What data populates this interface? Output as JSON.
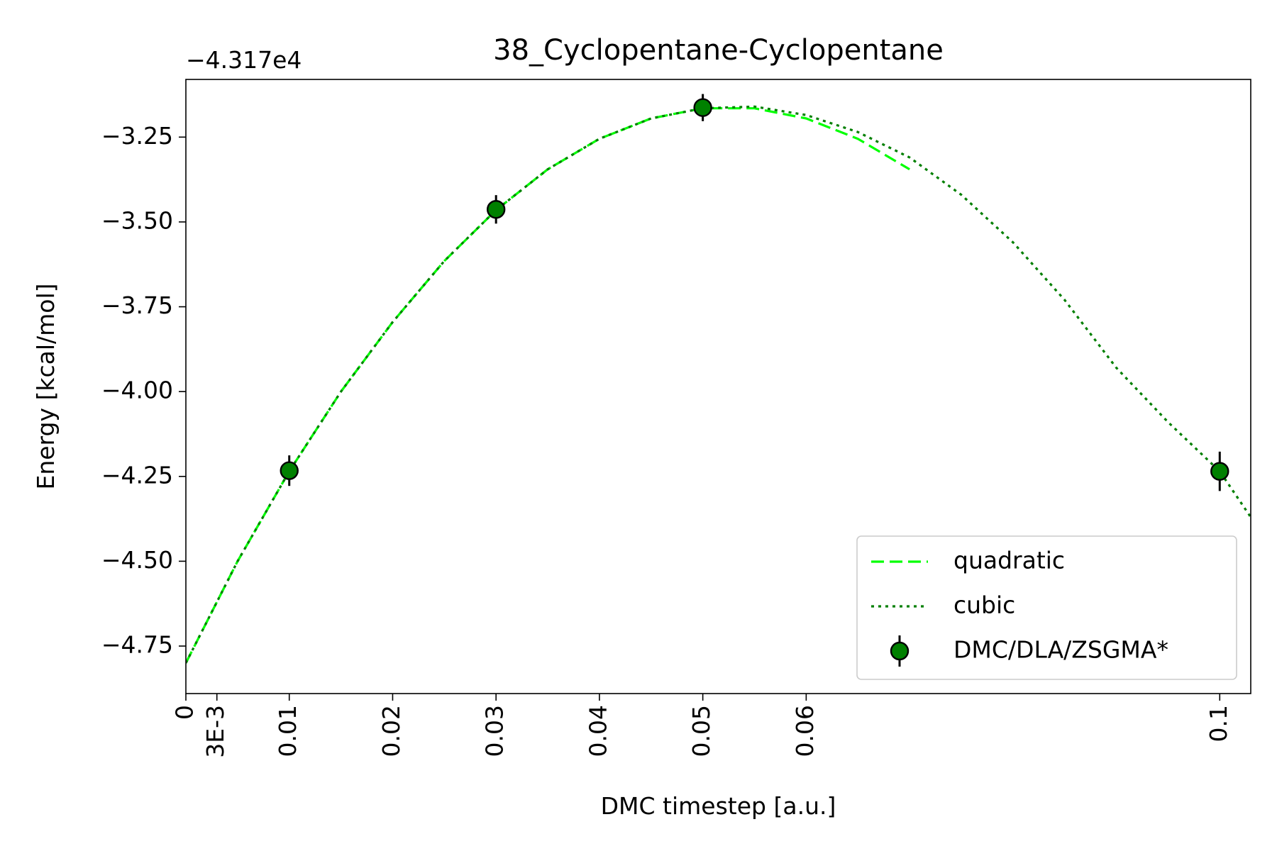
{
  "chart_data": {
    "type": "line",
    "title": "38_Cyclopentane-Cyclopentane",
    "xlabel": "DMC timestep [a.u.]",
    "ylabel": "Energy [kcal/mol]",
    "y_offset_label": "−4.317e4",
    "xlim": [
      0,
      0.103
    ],
    "ylim": [
      -4.89,
      -3.08
    ],
    "grid": false,
    "legend_position": "lower-right",
    "x_ticks": [
      {
        "value": 0,
        "label": "0"
      },
      {
        "value": 0.003,
        "label": "3E-3"
      },
      {
        "value": 0.01,
        "label": "0.01"
      },
      {
        "value": 0.02,
        "label": "0.02"
      },
      {
        "value": 0.03,
        "label": "0.03"
      },
      {
        "value": 0.04,
        "label": "0.04"
      },
      {
        "value": 0.05,
        "label": "0.05"
      },
      {
        "value": 0.06,
        "label": "0.06"
      },
      {
        "value": 0.1,
        "label": "0.1"
      }
    ],
    "y_ticks": [
      {
        "value": -3.25,
        "label": "−3.25"
      },
      {
        "value": -3.5,
        "label": "−3.50"
      },
      {
        "value": -3.75,
        "label": "−3.75"
      },
      {
        "value": -4.0,
        "label": "−4.00"
      },
      {
        "value": -4.25,
        "label": "−4.25"
      },
      {
        "value": -4.5,
        "label": "−4.50"
      },
      {
        "value": -4.75,
        "label": "−4.75"
      }
    ],
    "series": [
      {
        "name": "quadratic",
        "kind": "line",
        "style": "dashed",
        "color": "#00ff00",
        "x": [
          0,
          0.005,
          0.01,
          0.015,
          0.02,
          0.025,
          0.03,
          0.035,
          0.04,
          0.045,
          0.05,
          0.055,
          0.06,
          0.065,
          0.07
        ],
        "y": [
          -4.8,
          -4.5,
          -4.235,
          -4.0,
          -3.795,
          -3.615,
          -3.465,
          -3.345,
          -3.255,
          -3.195,
          -3.165,
          -3.165,
          -3.195,
          -3.255,
          -3.345
        ]
      },
      {
        "name": "cubic",
        "kind": "line",
        "style": "dotted",
        "color": "#007f00",
        "x": [
          0,
          0.005,
          0.01,
          0.015,
          0.02,
          0.025,
          0.03,
          0.035,
          0.04,
          0.045,
          0.05,
          0.055,
          0.06,
          0.065,
          0.07,
          0.075,
          0.08,
          0.085,
          0.09,
          0.095,
          0.1,
          0.103
        ],
        "y": [
          -4.8,
          -4.5,
          -4.235,
          -4.0,
          -3.795,
          -3.615,
          -3.465,
          -3.345,
          -3.255,
          -3.195,
          -3.165,
          -3.16,
          -3.185,
          -3.235,
          -3.31,
          -3.42,
          -3.56,
          -3.73,
          -3.93,
          -4.09,
          -4.235,
          -4.37
        ]
      },
      {
        "name": "DMC/DLA/ZSGMA*",
        "kind": "errorbar",
        "color": "#008000",
        "x": [
          0.01,
          0.03,
          0.05,
          0.1
        ],
        "y": [
          -4.233,
          -3.463,
          -3.163,
          -4.235
        ],
        "yerr": [
          0.045,
          0.042,
          0.04,
          0.058
        ]
      }
    ]
  }
}
